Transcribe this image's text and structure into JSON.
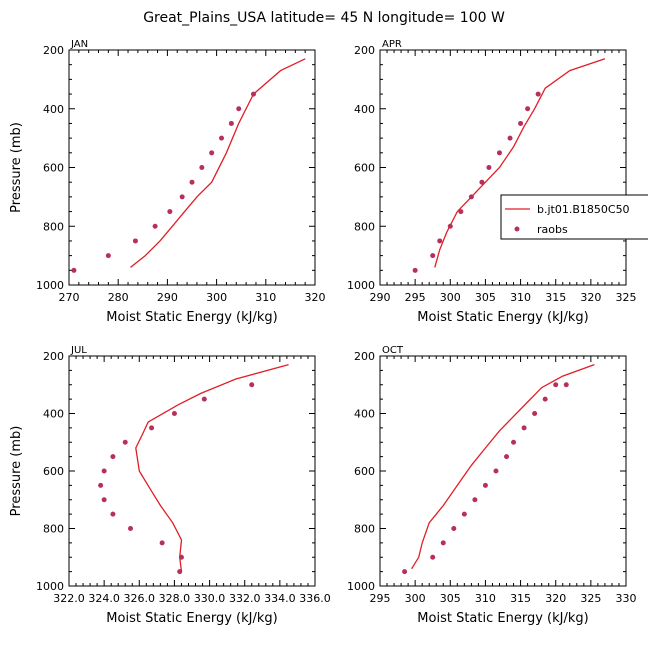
{
  "title": "Great_Plains_USA  latitude= 45 N longitude= 100 W",
  "colors": {
    "model": "#e01e26",
    "obs": "#b5305a"
  },
  "legend": {
    "model_label": "b.jt01.B1850C50",
    "obs_label": "raobs"
  },
  "chart_data": [
    {
      "type": "scatter",
      "panel": "JAN",
      "xlabel": "Moist Static Energy (kJ/kg)",
      "ylabel": "Pressure (mb)",
      "xlim": [
        270,
        320
      ],
      "ylim": [
        1000,
        200
      ],
      "xticks": [
        270,
        280,
        290,
        300,
        310,
        320
      ],
      "yticks": [
        200,
        400,
        600,
        800,
        1000
      ],
      "series": [
        {
          "name": "b.jt01.B1850C50",
          "style": "line",
          "x": [
            282.5,
            285.5,
            288.5,
            291,
            293.5,
            296,
            299,
            302,
            304.5,
            307.5,
            313,
            318
          ],
          "y": [
            940,
            900,
            850,
            800,
            750,
            700,
            650,
            550,
            450,
            350,
            270,
            230
          ]
        },
        {
          "name": "raobs",
          "style": "points",
          "x": [
            271,
            278,
            283.5,
            287.5,
            290.5,
            293,
            295,
            297,
            299,
            301,
            303,
            304.5,
            307.5
          ],
          "y": [
            950,
            900,
            850,
            800,
            750,
            700,
            650,
            600,
            550,
            500,
            450,
            400,
            350
          ]
        }
      ]
    },
    {
      "type": "scatter",
      "panel": "APR",
      "xlabel": "Moist Static Energy (kJ/kg)",
      "ylabel": "",
      "xlim": [
        290,
        325
      ],
      "ylim": [
        1000,
        200
      ],
      "xticks": [
        290,
        295,
        300,
        305,
        310,
        315,
        320,
        325
      ],
      "yticks": [
        200,
        400,
        600,
        800,
        1000
      ],
      "series": [
        {
          "name": "b.jt01.B1850C50",
          "style": "line",
          "x": [
            297.8,
            298.5,
            299.5,
            301,
            303,
            305,
            307,
            309,
            310.5,
            312,
            313.5,
            317,
            322
          ],
          "y": [
            940,
            880,
            820,
            750,
            700,
            650,
            600,
            530,
            460,
            400,
            330,
            270,
            230
          ]
        },
        {
          "name": "raobs",
          "style": "points",
          "x": [
            295,
            297.5,
            298.5,
            300,
            301.5,
            303,
            304.5,
            305.5,
            307,
            308.5,
            310,
            311,
            312.5
          ],
          "y": [
            950,
            900,
            850,
            800,
            750,
            700,
            650,
            600,
            550,
            500,
            450,
            400,
            350
          ]
        }
      ]
    },
    {
      "type": "scatter",
      "panel": "JUL",
      "xlabel": "Moist Static Energy (kJ/kg)",
      "ylabel": "Pressure (mb)",
      "xlim": [
        322,
        336
      ],
      "ylim": [
        1000,
        200
      ],
      "xticks": [
        322,
        324,
        326,
        328,
        330,
        332,
        334,
        336
      ],
      "xtick_labels": [
        "322.0",
        "324.0",
        "326.0",
        "328.0",
        "330.0",
        "332.0",
        "334.0",
        "336.0"
      ],
      "yticks": [
        200,
        400,
        600,
        800,
        1000
      ],
      "series": [
        {
          "name": "b.jt01.B1850C50",
          "style": "line",
          "x": [
            328.4,
            328.3,
            328.4,
            327.9,
            327.2,
            326.6,
            326.0,
            325.8,
            326.2,
            326.5,
            328.2,
            329.5,
            331.5,
            334.5
          ],
          "y": [
            950,
            900,
            840,
            780,
            720,
            660,
            600,
            520,
            470,
            430,
            370,
            330,
            280,
            230
          ]
        },
        {
          "name": "raobs",
          "style": "points",
          "x": [
            328.3,
            328.4,
            327.3,
            325.5,
            324.5,
            324.0,
            323.8,
            324.0,
            324.5,
            325.2,
            326.7,
            328.0,
            329.7,
            332.4
          ],
          "y": [
            950,
            900,
            850,
            800,
            750,
            700,
            650,
            600,
            550,
            500,
            450,
            400,
            350,
            300
          ]
        }
      ]
    },
    {
      "type": "scatter",
      "panel": "OCT",
      "xlabel": "Moist Static Energy (kJ/kg)",
      "ylabel": "",
      "xlim": [
        295,
        330
      ],
      "ylim": [
        1000,
        200
      ],
      "xticks": [
        295,
        300,
        305,
        310,
        315,
        320,
        325,
        330
      ],
      "yticks": [
        200,
        400,
        600,
        800,
        1000
      ],
      "series": [
        {
          "name": "b.jt01.B1850C50",
          "style": "line",
          "x": [
            299.5,
            300.5,
            301,
            302,
            304,
            306,
            308,
            310,
            312,
            314,
            316,
            318,
            321,
            325.5
          ],
          "y": [
            940,
            900,
            850,
            780,
            720,
            650,
            580,
            520,
            460,
            410,
            360,
            310,
            270,
            230
          ]
        },
        {
          "name": "raobs",
          "style": "points",
          "x": [
            298.5,
            302.5,
            304,
            305.5,
            307,
            308.5,
            310,
            311.5,
            313,
            314,
            315.5,
            317,
            318.5,
            320,
            321.5
          ],
          "y": [
            950,
            900,
            850,
            800,
            750,
            700,
            650,
            600,
            550,
            500,
            450,
            400,
            350,
            300,
            300
          ]
        }
      ]
    }
  ]
}
